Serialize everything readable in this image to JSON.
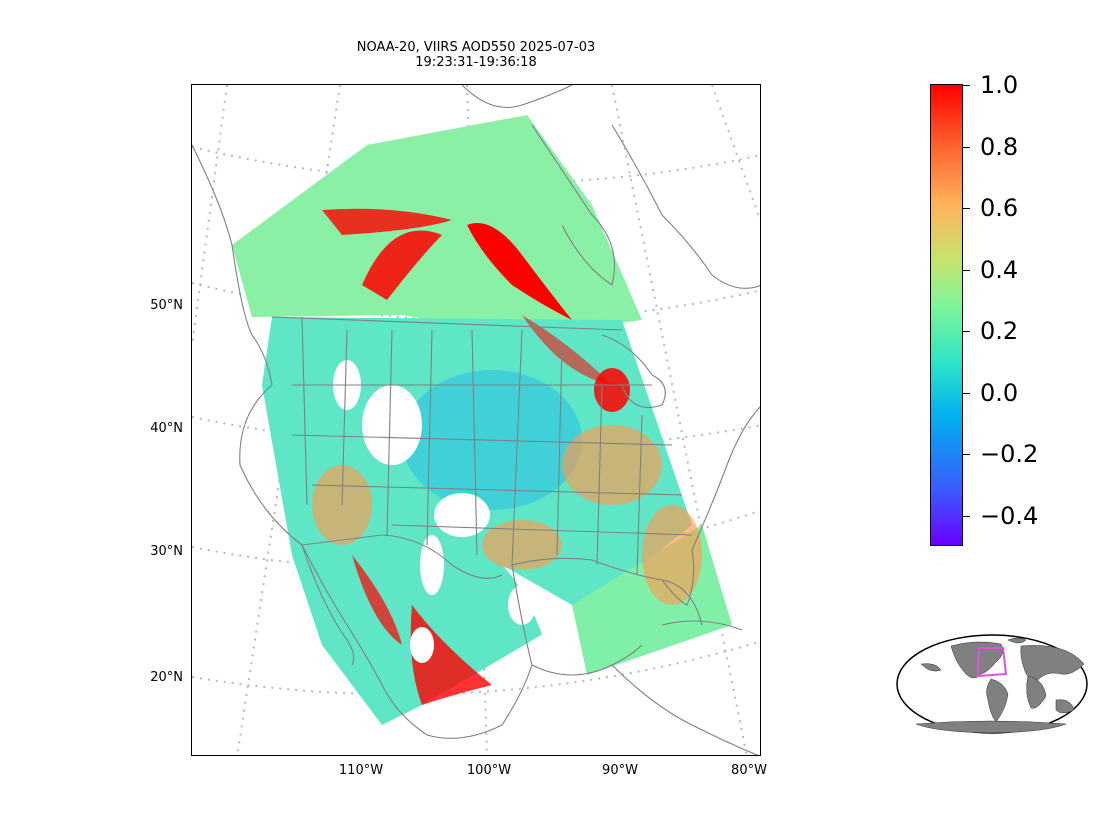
{
  "title": {
    "line1": "NOAA-20, VIIRS AOD550 2025-07-03",
    "line2": "19:23:31-19:36:18"
  },
  "map": {
    "lat_labels": [
      "50°N",
      "40°N",
      "30°N",
      "20°N"
    ],
    "lon_labels": [
      "110°W",
      "100°W",
      "90°W",
      "80°W"
    ],
    "colors": {
      "land_outline": "#808080",
      "graticule": "#b8b8b8",
      "swath_base": "#7ff0b4",
      "high_aod": "#ff0000"
    }
  },
  "colorbar": {
    "ticks": [
      "1.0",
      "0.8",
      "0.6",
      "0.4",
      "0.2",
      "0.0",
      "−0.2",
      "−0.4"
    ],
    "range": [
      -0.5,
      1.0
    ],
    "colormap": "rainbow"
  },
  "inset": {
    "globe_land_color": "#808080",
    "box_color": "#e050e0"
  }
}
